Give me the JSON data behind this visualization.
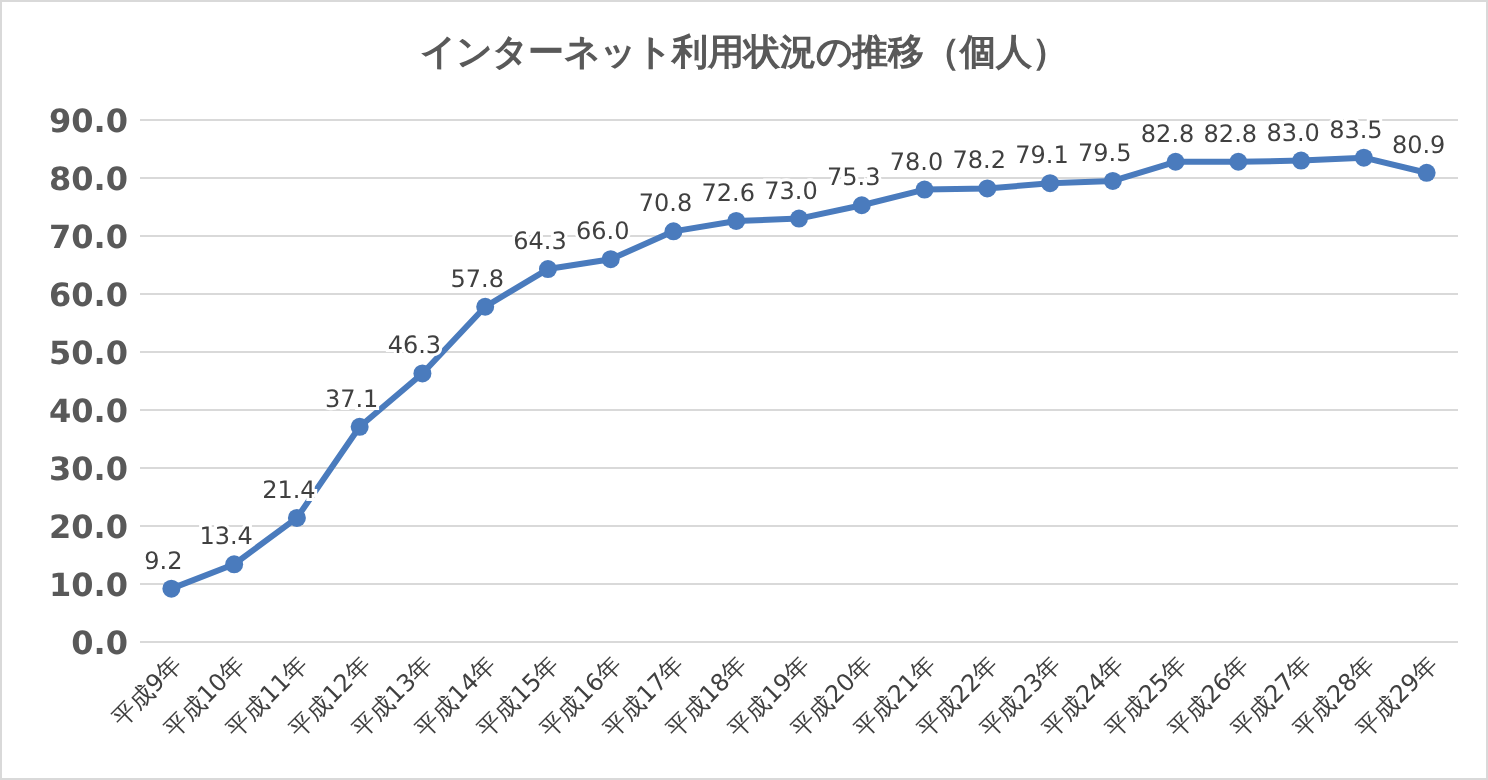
{
  "chart_data": {
    "type": "line",
    "title": "インターネット利用状況の推移（個人）",
    "categories": [
      "平成9年",
      "平成10年",
      "平成11年",
      "平成12年",
      "平成13年",
      "平成14年",
      "平成15年",
      "平成16年",
      "平成17年",
      "平成18年",
      "平成19年",
      "平成20年",
      "平成21年",
      "平成22年",
      "平成23年",
      "平成24年",
      "平成25年",
      "平成26年",
      "平成27年",
      "平成28年",
      "平成29年"
    ],
    "series": [
      {
        "color": "#4a7bbd",
        "values": [
          9.2,
          13.4,
          21.4,
          37.1,
          46.3,
          57.8,
          64.3,
          66.0,
          70.8,
          72.6,
          73.0,
          75.3,
          78.0,
          78.2,
          79.1,
          79.5,
          82.8,
          82.8,
          83.0,
          83.5,
          80.9
        ],
        "value_labels": [
          "9.2",
          "13.4",
          "21.4",
          "37.1",
          "46.3",
          "57.8",
          "64.3",
          "66.0",
          "70.8",
          "72.6",
          "73.0",
          "75.3",
          "78.0",
          "78.2",
          "79.1",
          "79.5",
          "82.8",
          "82.8",
          "83.0",
          "83.5",
          "80.9"
        ]
      }
    ],
    "ylim": [
      0,
      90
    ],
    "yticks": [
      {
        "value": 0,
        "label": "0.0"
      },
      {
        "value": 10,
        "label": "10.0"
      },
      {
        "value": 20,
        "label": "20.0"
      },
      {
        "value": 30,
        "label": "30.0"
      },
      {
        "value": 40,
        "label": "40.0"
      },
      {
        "value": 50,
        "label": "50.0"
      },
      {
        "value": 60,
        "label": "60.0"
      },
      {
        "value": 70,
        "label": "70.0"
      },
      {
        "value": 80,
        "label": "80.0"
      },
      {
        "value": 90,
        "label": "90.0"
      }
    ],
    "grid": "y",
    "marker": "circle",
    "line_style": "solid"
  }
}
